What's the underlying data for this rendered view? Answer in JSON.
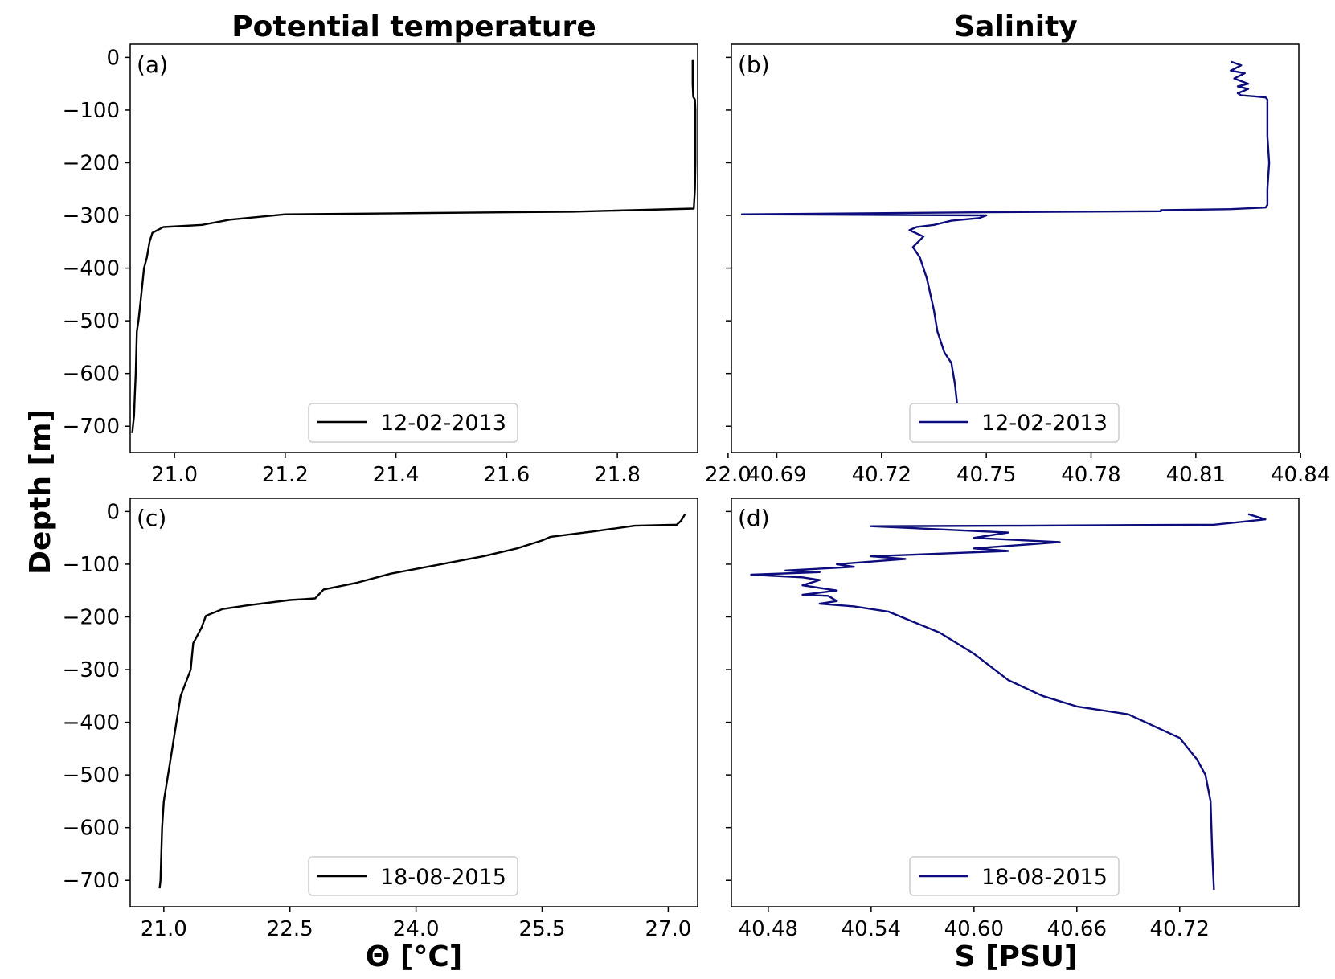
{
  "column_titles": [
    "Potential temperature",
    "Salinity"
  ],
  "shared_ylabel": "Depth [m]",
  "chart_data": [
    {
      "id": "a",
      "type": "line",
      "panel_label": "(a)",
      "title": "Potential temperature",
      "xlabel": "",
      "ylabel": "Depth [m]",
      "xlim": [
        20.92,
        21.945
      ],
      "ylim": [
        -750,
        25
      ],
      "xticks": [
        21.0,
        21.2,
        21.4,
        21.6,
        21.8,
        22.0
      ],
      "xtick_labels": [
        "21.0",
        "21.2",
        "21.4",
        "21.6",
        "21.8",
        "22.0"
      ],
      "yticks": [
        0,
        -100,
        -200,
        -300,
        -400,
        -500,
        -600,
        -700
      ],
      "ytick_labels": [
        "0",
        "−100",
        "−200",
        "−300",
        "−400",
        "−500",
        "−600",
        "−700"
      ],
      "legend": "12-02-2013",
      "color": "#000000",
      "series": [
        {
          "name": "12-02-2013",
          "x": [
            21.936,
            21.936,
            21.937,
            21.94,
            21.941,
            21.941,
            21.94,
            21.938,
            21.72,
            21.4,
            21.2,
            21.1,
            21.05,
            20.98,
            20.96,
            20.955,
            20.95,
            20.945,
            20.94,
            20.935,
            20.932,
            20.93,
            20.928,
            20.927,
            20.925,
            20.924,
            20.923
          ],
          "y": [
            -5,
            -50,
            -75,
            -80,
            -100,
            -200,
            -250,
            -287,
            -293,
            -296,
            -298,
            -308,
            -318,
            -322,
            -333,
            -350,
            -380,
            -400,
            -450,
            -500,
            -520,
            -600,
            -650,
            -680,
            -700,
            -710,
            -713
          ]
        }
      ]
    },
    {
      "id": "b",
      "type": "line",
      "panel_label": "(b)",
      "title": "Salinity",
      "xlabel": "",
      "ylabel": "",
      "xlim": [
        40.677,
        40.8395
      ],
      "ylim": [
        -750,
        25
      ],
      "xticks": [
        40.69,
        40.72,
        40.75,
        40.78,
        40.81,
        40.84
      ],
      "xtick_labels": [
        "40.69",
        "40.72",
        "40.75",
        "40.78",
        "40.81",
        "40.84"
      ],
      "yticks": [
        0,
        -100,
        -200,
        -300,
        -400,
        -500,
        -600,
        -700
      ],
      "ytick_labels": [
        "",
        "",
        "",
        "",
        "",
        "",
        "",
        ""
      ],
      "legend": "12-02-2013",
      "color": "#0c0c7c",
      "series": [
        {
          "name": "12-02-2013",
          "x": [
            40.82,
            40.823,
            40.82,
            40.824,
            40.821,
            40.825,
            40.822,
            40.825,
            40.822,
            40.823,
            40.827,
            40.83,
            40.8305,
            40.8305,
            40.831,
            40.8305,
            40.8305,
            40.83,
            40.82,
            40.8,
            40.8,
            40.75,
            40.68,
            40.75,
            40.748,
            40.74,
            40.735,
            40.73,
            40.728,
            40.732,
            40.729,
            40.731,
            40.733,
            40.735,
            40.736,
            40.738,
            40.74,
            40.741,
            40.742,
            40.7415
          ],
          "y": [
            -8,
            -15,
            -25,
            -30,
            -40,
            -50,
            -55,
            -60,
            -68,
            -72,
            -74,
            -76,
            -80,
            -150,
            -200,
            -250,
            -280,
            -285,
            -288,
            -290,
            -292,
            -294,
            -298,
            -300,
            -305,
            -310,
            -318,
            -322,
            -328,
            -340,
            -360,
            -380,
            -420,
            -480,
            -520,
            -560,
            -580,
            -620,
            -680,
            -713
          ]
        }
      ]
    },
    {
      "id": "c",
      "type": "line",
      "panel_label": "(c)",
      "title": "",
      "xlabel": "Θ [°C]",
      "ylabel": "",
      "xlim": [
        20.6,
        27.35
      ],
      "ylim": [
        -750,
        25
      ],
      "xticks": [
        21.0,
        22.5,
        24.0,
        25.5,
        27.0
      ],
      "xtick_labels": [
        "21.0",
        "22.5",
        "24.0",
        "25.5",
        "27.0"
      ],
      "yticks": [
        0,
        -100,
        -200,
        -300,
        -400,
        -500,
        -600,
        -700
      ],
      "ytick_labels": [
        "0",
        "−100",
        "−200",
        "−300",
        "−400",
        "−500",
        "−600",
        "−700"
      ],
      "legend": "18-08-2015",
      "color": "#000000",
      "series": [
        {
          "name": "18-08-2015",
          "x": [
            27.2,
            27.15,
            27.1,
            26.6,
            26.1,
            25.6,
            25.5,
            25.2,
            24.8,
            24.3,
            23.7,
            23.3,
            22.9,
            22.8,
            22.5,
            22.0,
            21.7,
            21.5,
            21.45,
            21.35,
            21.32,
            21.2,
            21.15,
            21.1,
            21.05,
            21.0,
            20.98,
            20.96,
            20.95
          ],
          "y": [
            -5,
            -18,
            -25,
            -27,
            -38,
            -48,
            -55,
            -70,
            -85,
            -100,
            -118,
            -135,
            -148,
            -165,
            -168,
            -178,
            -185,
            -198,
            -220,
            -250,
            -300,
            -350,
            -400,
            -450,
            -500,
            -550,
            -600,
            -700,
            -715
          ]
        }
      ]
    },
    {
      "id": "d",
      "type": "line",
      "panel_label": "(d)",
      "title": "",
      "xlabel": "S [PSU]",
      "ylabel": "",
      "xlim": [
        40.4585,
        40.7895
      ],
      "ylim": [
        -750,
        25
      ],
      "xticks": [
        40.48,
        40.54,
        40.6,
        40.66,
        40.72
      ],
      "xtick_labels": [
        "40.48",
        "40.54",
        "40.60",
        "40.66",
        "40.72"
      ],
      "yticks": [
        0,
        -100,
        -200,
        -300,
        -400,
        -500,
        -600,
        -700
      ],
      "ytick_labels": [
        "",
        "",
        "",
        "",
        "",
        "",
        "",
        ""
      ],
      "legend": "18-08-2015",
      "color": "#0c0c7c",
      "series": [
        {
          "name": "18-08-2015",
          "x": [
            40.76,
            40.77,
            40.74,
            40.62,
            40.54,
            40.62,
            40.6,
            40.65,
            40.6,
            40.62,
            40.58,
            40.54,
            40.56,
            40.52,
            40.53,
            40.49,
            40.51,
            40.47,
            40.5,
            40.51,
            40.5,
            40.52,
            40.5,
            40.515,
            40.52,
            40.51,
            40.53,
            40.55,
            40.58,
            40.6,
            40.62,
            40.64,
            40.66,
            40.69,
            40.72,
            40.73,
            40.735,
            40.738,
            40.739,
            40.74
          ],
          "y": [
            -5,
            -15,
            -25,
            -27,
            -28,
            -40,
            -50,
            -58,
            -70,
            -75,
            -80,
            -85,
            -90,
            -100,
            -105,
            -112,
            -115,
            -120,
            -125,
            -130,
            -140,
            -150,
            -158,
            -160,
            -170,
            -175,
            -180,
            -190,
            -230,
            -270,
            -320,
            -350,
            -370,
            -385,
            -430,
            -470,
            -500,
            -550,
            -650,
            -718
          ]
        }
      ]
    }
  ]
}
